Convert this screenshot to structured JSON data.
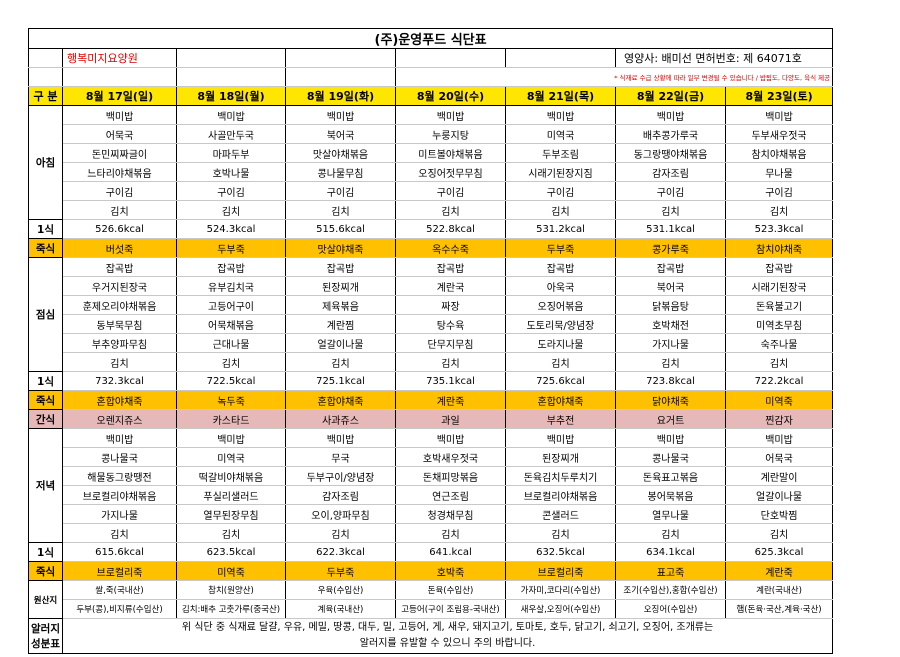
{
  "title": "(주)운영푸드 식단표",
  "facility": "행복미지요양원",
  "dietitian": "영양사: 배미선 면허번호: 제 64071호",
  "note": "* 식재료 수급 상황에 따라 일부 변경될 수 있습니다 / 밥됨도, 다양도, 육식 제공",
  "header": {
    "label": "구 분",
    "color": "#ffe600",
    "days": [
      "8월 17일(일)",
      "8월 18일(월)",
      "8월 19일(화)",
      "8월 20일(수)",
      "8월 21일(목)",
      "8월 22일(금)",
      "8월 23일(토)"
    ]
  },
  "blocks": [
    {
      "label": "아침",
      "rows": [
        [
          "백미밥",
          "백미밥",
          "백미밥",
          "백미밥",
          "백미밥",
          "백미밥",
          "백미밥"
        ],
        [
          "어묵국",
          "사골만두국",
          "북어국",
          "누룽지탕",
          "미역국",
          "배추콩가루국",
          "두부새우젓국"
        ],
        [
          "돈민찌짜글이",
          "마파두부",
          "맛살야채볶음",
          "미트볼야채볶음",
          "두부조림",
          "동그랑땡야채볶음",
          "참치야채볶음"
        ],
        [
          "느타리야채볶음",
          "호박나물",
          "콩나물무침",
          "오징어젓무무침",
          "시래기된장지짐",
          "감자조림",
          "무나물"
        ],
        [
          "구이김",
          "구이김",
          "구이김",
          "구이김",
          "구이김",
          "구이김",
          "구이김"
        ],
        [
          "김치",
          "김치",
          "김치",
          "김치",
          "김치",
          "김치",
          "김치"
        ]
      ]
    },
    {
      "label": "1식",
      "rows": [
        [
          "526.6kcal",
          "524.3kcal",
          "515.6kcal",
          "522.8kcal",
          "531.2kcal",
          "531.1kcal",
          "523.3kcal"
        ]
      ]
    },
    {
      "label": "죽식",
      "color": "#ffc000",
      "rows": [
        [
          "버섯죽",
          "두부죽",
          "맛살야채죽",
          "옥수수죽",
          "두부죽",
          "콩가루죽",
          "참치야채죽"
        ]
      ]
    },
    {
      "label": "점심",
      "rows": [
        [
          "잡곡밥",
          "잡곡밥",
          "잡곡밥",
          "잡곡밥",
          "잡곡밥",
          "잡곡밥",
          "잡곡밥"
        ],
        [
          "우거지된장국",
          "유부김치국",
          "된장찌개",
          "계란국",
          "아욱국",
          "북어국",
          "시래기된장국"
        ],
        [
          "훈제오리야채볶음",
          "고등어구이",
          "제육볶음",
          "짜장",
          "오징어볶음",
          "닭볶음탕",
          "돈육불고기"
        ],
        [
          "동부묵무침",
          "어묵채볶음",
          "계란찜",
          "탕수육",
          "도토리묵/양념장",
          "호박채전",
          "미역초무침"
        ],
        [
          "부추양파무침",
          "근대나물",
          "얼갈이나물",
          "단무지무침",
          "도라지나물",
          "가지나물",
          "숙주나물"
        ],
        [
          "김치",
          "김치",
          "김치",
          "김치",
          "김치",
          "김치",
          "김치"
        ]
      ]
    },
    {
      "label": "1식",
      "rows": [
        [
          "732.3kcal",
          "722.5kcal",
          "725.1kcal",
          "735.1kcal",
          "725.6kcal",
          "723.8kcal",
          "722.2kcal"
        ]
      ]
    },
    {
      "label": "죽식",
      "color": "#ffc000",
      "rows": [
        [
          "혼합야채죽",
          "녹두죽",
          "혼합야채죽",
          "계란죽",
          "혼합야채죽",
          "닭야채죽",
          "미역죽"
        ]
      ]
    },
    {
      "label": "간식",
      "color": "#e6b8b7",
      "rows": [
        [
          "오렌지쥬스",
          "카스타드",
          "사과쥬스",
          "과일",
          "부추전",
          "요거트",
          "찐감자"
        ]
      ]
    },
    {
      "label": "저녁",
      "rows": [
        [
          "백미밥",
          "백미밥",
          "백미밥",
          "백미밥",
          "백미밥",
          "백미밥",
          "백미밥"
        ],
        [
          "콩나물국",
          "미역국",
          "무국",
          "호박새우젓국",
          "된장찌개",
          "콩나물국",
          "어묵국"
        ],
        [
          "해물동그랑땡전",
          "떡갈비야채볶음",
          "두부구이/양념장",
          "돈채피망볶음",
          "돈육김치두루치기",
          "돈육표고볶음",
          "계란말이"
        ],
        [
          "브로컬리야채볶음",
          "푸실리샐러드",
          "감자조림",
          "연근조림",
          "브로컬리야채볶음",
          "봉어묵볶음",
          "얼갈이나물"
        ],
        [
          "가지나물",
          "열무된장무침",
          "오이,양파무침",
          "청경채무침",
          "콘샐러드",
          "열무나물",
          "단호박찜"
        ],
        [
          "김치",
          "김치",
          "김치",
          "김치",
          "김치",
          "김치",
          "김치"
        ]
      ]
    },
    {
      "label": "1식",
      "rows": [
        [
          "615.6kcal",
          "623.5kcal",
          "622.3kcal",
          "641.kcal",
          "632.5kcal",
          "634.1kcal",
          "625.3kcal"
        ]
      ]
    },
    {
      "label": "죽식",
      "color": "#ffc000",
      "rows": [
        [
          "브로컬리죽",
          "미역죽",
          "두부죽",
          "호박죽",
          "브로컬리죽",
          "표고죽",
          "계란죽"
        ]
      ]
    },
    {
      "label": "원산지",
      "compact": true,
      "rows": [
        [
          "쌀,죽(국내산)",
          "참치(원양산)",
          "우육(수입산)",
          "돈육(수입산)",
          "가자미,코다리(수입산)",
          "조기(수입산),홍합(수입산)",
          "계란(국내산)"
        ],
        [
          "두부(콩),비지류(수입산)",
          "김치:배추 고춧가루(중국산)",
          "계육(국내산)",
          "고등어(구이 조림용-국내산)",
          "새우살,오징어(수입산)",
          "오징어(수입산)",
          "햄(돈육·국산,계육·국산)"
        ]
      ]
    }
  ],
  "allergy": {
    "label": "알러지 성분표",
    "lines": [
      "위 식단 중 식재료 달걀, 우유, 메밀, 땅콩, 대두, 밀, 고등어, 게, 새우, 돼지고기, 토마토, 호두, 닭고기, 쇠고기, 오징어, 조개류는",
      "알러지를 유발할 수 있으니 주의 바랍니다."
    ]
  }
}
